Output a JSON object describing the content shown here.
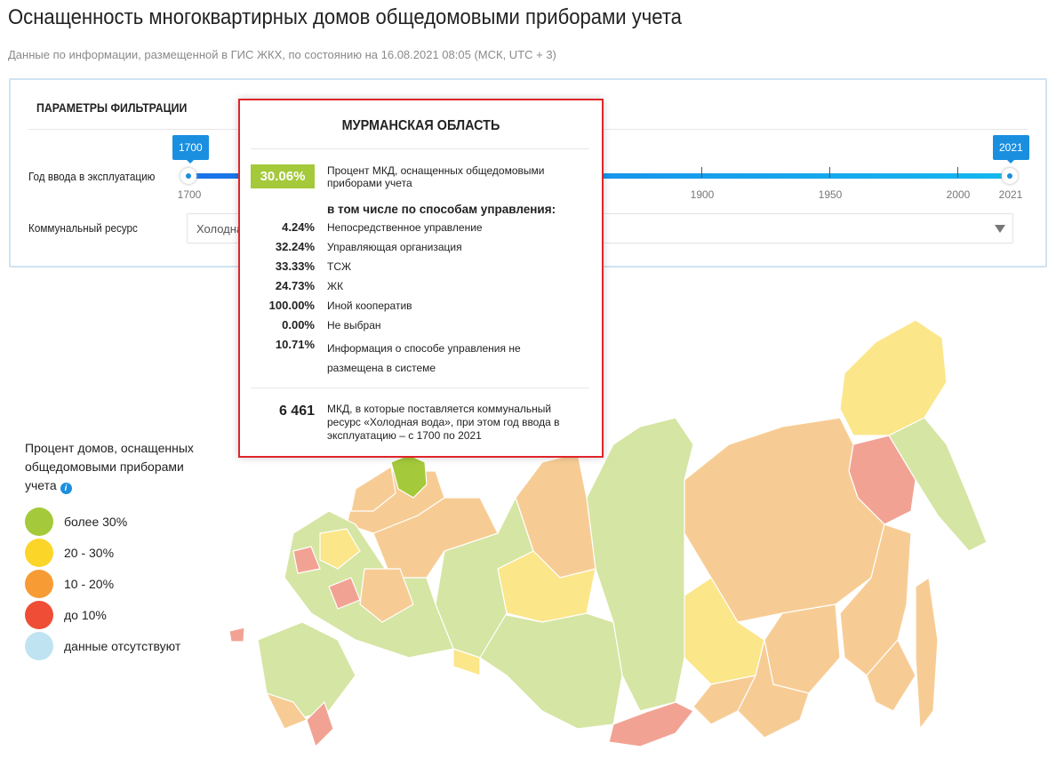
{
  "header": {
    "title": "Оснащенность многоквартирных домов общедомовыми приборами учета",
    "subtitle": "Данные по информации, размещенной в ГИС ЖКХ, по состоянию на 16.08.2021 08:05 (МСК, UTC + 3)"
  },
  "filter": {
    "title": "ПАРАМЕТРЫ ФИЛЬТРАЦИИ",
    "year_label": "Год ввода в эксплуатацию",
    "year_from": "1700",
    "year_to": "2021",
    "ticks": [
      "1700",
      "1900",
      "1950",
      "2000",
      "2021"
    ],
    "resource_label": "Коммунальный ресурс",
    "resource_value": "Холодная вода"
  },
  "tooltip": {
    "region": "МУРМАНСКАЯ ОБЛАСТЬ",
    "percent": "30.06%",
    "percent_label": "Процент МКД, оснащенных общедомовыми приборами учета",
    "subheading": "в том числе по способам управления:",
    "rows": [
      {
        "value": "4.24%",
        "label": "Непосредственное управление"
      },
      {
        "value": "32.24%",
        "label": "Управляющая организация"
      },
      {
        "value": "33.33%",
        "label": "ТСЖ"
      },
      {
        "value": "24.73%",
        "label": "ЖК"
      },
      {
        "value": "100.00%",
        "label": "Иной кооператив"
      },
      {
        "value": "0.00%",
        "label": "Не выбран"
      },
      {
        "value": "10.71%",
        "label": "Информация о способе управления не размещена в системе"
      }
    ],
    "count": "6 461",
    "count_label": "МКД, в которые поставляется коммунальный ресурс «Холодная вода», при этом год ввода в эксплуатацию – с 1700 по 2021"
  },
  "legend": {
    "title": "Процент домов, оснащенных общедомовыми приборами учета",
    "info_icon": "i",
    "items": [
      {
        "label": "более 30%",
        "color": "#a4c93a"
      },
      {
        "label": "20 - 30%",
        "color": "#fcd529"
      },
      {
        "label": "10 - 20%",
        "color": "#f79c35"
      },
      {
        "label": "до 10%",
        "color": "#ef4d35"
      },
      {
        "label": "данные отсутствуют",
        "color": "#bfe3f1"
      }
    ]
  },
  "map_colors": {
    "green": "#d5e5a3",
    "yellow": "#fbe689",
    "orange": "#f7cc94",
    "red": "#f2a293",
    "selected": "#a4c93a"
  }
}
